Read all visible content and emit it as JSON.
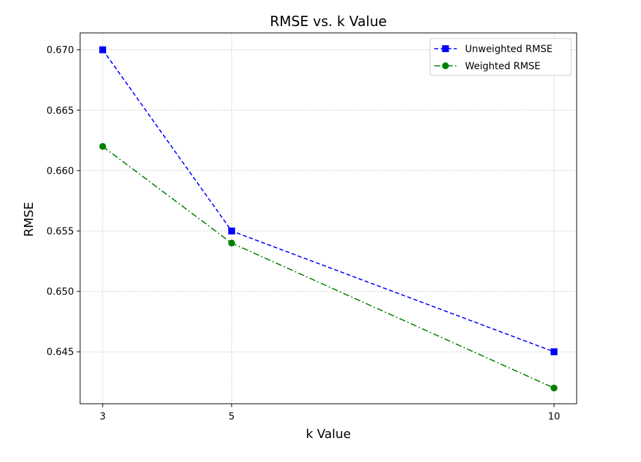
{
  "chart_data": {
    "type": "line",
    "title": "RMSE vs. k Value",
    "xlabel": "k Value",
    "ylabel": "RMSE",
    "x": [
      3,
      5,
      10
    ],
    "x_ticks": [
      "3",
      "5",
      "10"
    ],
    "y_ticks": [
      "0.645",
      "0.650",
      "0.655",
      "0.660",
      "0.665",
      "0.670"
    ],
    "xlim": [
      2.65,
      10.35
    ],
    "ylim": [
      0.6407,
      0.6714
    ],
    "grid": true,
    "legend_position": "top-right",
    "series": [
      {
        "name": "Unweighted RMSE",
        "values": [
          0.67,
          0.655,
          0.645
        ],
        "color": "#0000ff",
        "line_style": "dashed",
        "marker": "square"
      },
      {
        "name": "Weighted RMSE",
        "values": [
          0.662,
          0.654,
          0.642
        ],
        "color": "#008000",
        "line_style": "dash-dot",
        "marker": "circle"
      }
    ]
  }
}
